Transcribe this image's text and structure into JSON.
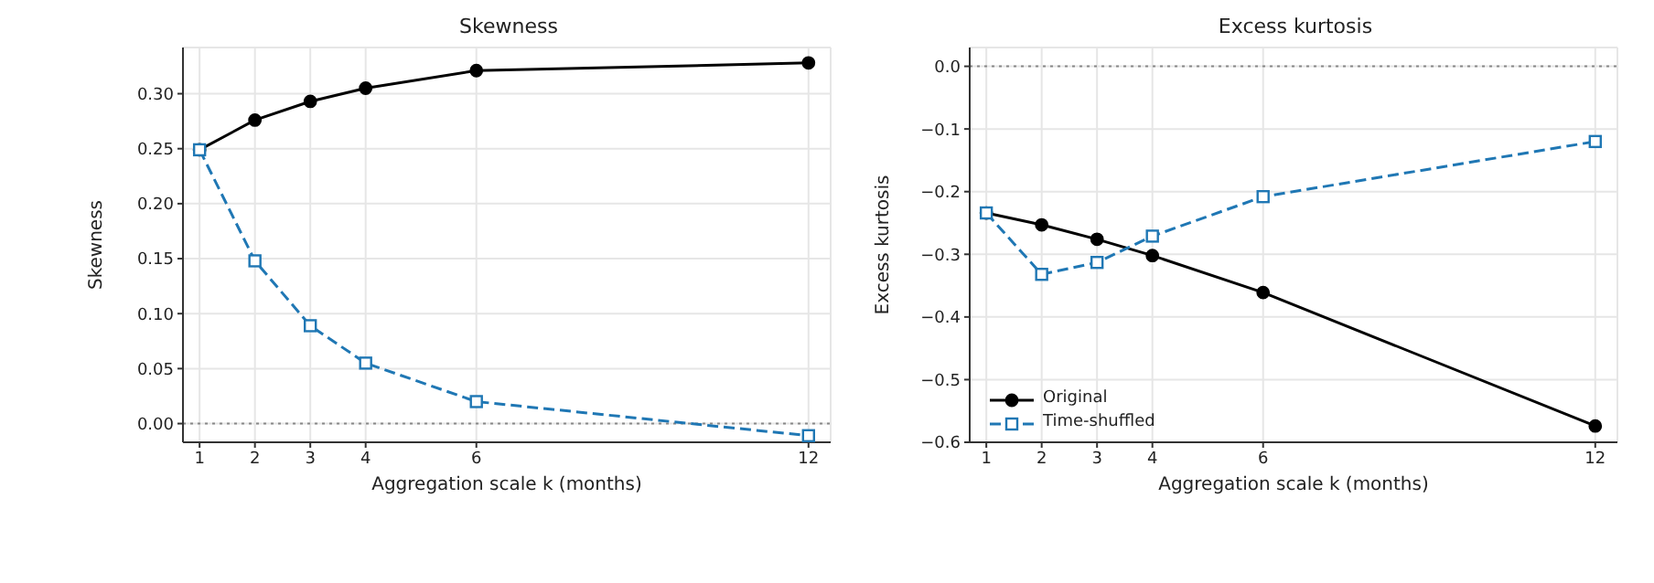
{
  "chart_data": [
    {
      "type": "line",
      "title": "Skewness",
      "xlabel": "Aggregation scale k (months)",
      "ylabel": "Skewness",
      "x": [
        1,
        2,
        3,
        4,
        6,
        12
      ],
      "xlim": [
        0.7,
        12.4
      ],
      "xticks": [
        1,
        2,
        3,
        4,
        6,
        12
      ],
      "ylim": [
        -0.017,
        0.342
      ],
      "yticks": [
        {
          "value": 0,
          "label": "0.00"
        },
        {
          "value": 0.05,
          "label": "0.05"
        },
        {
          "value": 0.1,
          "label": "0.10"
        },
        {
          "value": 0.15,
          "label": "0.15"
        },
        {
          "value": 0.2,
          "label": "0.20"
        },
        {
          "value": 0.25,
          "label": "0.25"
        },
        {
          "value": 0.3,
          "label": "0.30"
        }
      ],
      "grid": true,
      "legend": false,
      "series": [
        {
          "color": "#000000",
          "marker": "circle",
          "line_style": "solid",
          "values": [
            0.249,
            0.276,
            0.293,
            0.305,
            0.321,
            0.328
          ]
        },
        {
          "color": "#1f77b4",
          "marker": "square",
          "line_style": "dashed",
          "values": [
            0.249,
            0.148,
            0.089,
            0.055,
            0.02,
            -0.011
          ]
        }
      ],
      "ref_lines": [
        {
          "axis": "y",
          "value": 0,
          "color": "#888888",
          "line_style": "dotted"
        }
      ]
    },
    {
      "type": "line",
      "title": "Excess kurtosis",
      "xlabel": "Aggregation scale k (months)",
      "ylabel": "Excess kurtosis",
      "x": [
        1,
        2,
        3,
        4,
        6,
        12
      ],
      "xlim": [
        0.7,
        12.4
      ],
      "xticks": [
        1,
        2,
        3,
        4,
        6,
        12
      ],
      "ylim": [
        -0.6,
        0.03
      ],
      "yticks": [
        {
          "value": -0.6,
          "label": "−0.6"
        },
        {
          "value": -0.5,
          "label": "−0.5"
        },
        {
          "value": -0.4,
          "label": "−0.4"
        },
        {
          "value": -0.3,
          "label": "−0.3"
        },
        {
          "value": -0.2,
          "label": "−0.2"
        },
        {
          "value": -0.1,
          "label": "−0.1"
        },
        {
          "value": 0,
          "label": "0.0"
        }
      ],
      "grid": true,
      "legend": "bottom left",
      "series": [
        {
          "name": "Original",
          "color": "#000000",
          "marker": "circle",
          "line_style": "solid",
          "values": [
            -0.234,
            -0.253,
            -0.276,
            -0.302,
            -0.361,
            -0.574
          ]
        },
        {
          "name": "Time-shuffled",
          "color": "#1f77b4",
          "marker": "square",
          "line_style": "dashed",
          "values": [
            -0.234,
            -0.332,
            -0.313,
            -0.271,
            -0.208,
            -0.12
          ]
        }
      ],
      "ref_lines": [
        {
          "axis": "y",
          "value": 0,
          "color": "#888888",
          "line_style": "dotted"
        }
      ]
    }
  ]
}
